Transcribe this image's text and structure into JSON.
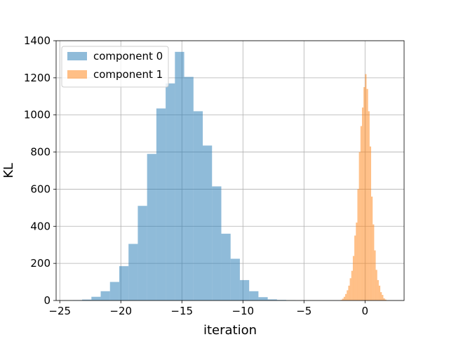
{
  "chart_data": {
    "type": "bar",
    "title": "",
    "xlabel": "iteration",
    "ylabel": "KL",
    "xlim": [
      -25.3,
      3.2
    ],
    "ylim": [
      0,
      1400
    ],
    "xticks": [
      -25,
      -20,
      -15,
      -10,
      -5,
      0
    ],
    "xtick_labels": [
      "−25",
      "−20",
      "−15",
      "−10",
      "−5",
      "0"
    ],
    "yticks": [
      0,
      200,
      400,
      600,
      800,
      1000,
      1200,
      1400
    ],
    "ytick_labels": [
      "0",
      "200",
      "400",
      "600",
      "800",
      "1000",
      "1200",
      "1400"
    ],
    "grid": true,
    "legend": "top-left",
    "series": [
      {
        "name": "component 0",
        "color": "#1f77b4",
        "alpha": 0.5,
        "bin_edges": [
          -24.69,
          -23.93,
          -23.17,
          -22.41,
          -21.65,
          -20.89,
          -20.13,
          -19.37,
          -18.61,
          -17.85,
          -17.09,
          -16.33,
          -15.57,
          -14.81,
          -14.05,
          -13.29,
          -12.53,
          -11.77,
          -11.01,
          -10.25,
          -9.49,
          -8.73,
          -7.97,
          -7.21,
          -6.45,
          -5.69
        ],
        "counts": [
          1,
          2,
          5,
          20,
          50,
          100,
          185,
          305,
          510,
          790,
          1035,
          1170,
          1340,
          1205,
          1020,
          835,
          615,
          360,
          225,
          110,
          50,
          18,
          6,
          3,
          1
        ]
      },
      {
        "name": "component 1",
        "color": "#ff7f0e",
        "alpha": 0.5,
        "bin_edges": [
          -2.0,
          -1.875,
          -1.75,
          -1.625,
          -1.5,
          -1.375,
          -1.25,
          -1.125,
          -1.0,
          -0.875,
          -0.75,
          -0.625,
          -0.5,
          -0.375,
          -0.25,
          -0.125,
          0.0,
          0.125,
          0.25,
          0.375,
          0.5,
          0.625,
          0.75,
          0.875,
          1.0,
          1.125,
          1.25,
          1.375,
          1.5,
          1.625,
          1.75
        ],
        "counts": [
          3,
          10,
          20,
          35,
          55,
          80,
          120,
          160,
          240,
          350,
          420,
          600,
          800,
          940,
          1040,
          1150,
          1220,
          1140,
          1020,
          830,
          560,
          410,
          270,
          165,
          110,
          80,
          45,
          30,
          12,
          5
        ]
      }
    ]
  }
}
